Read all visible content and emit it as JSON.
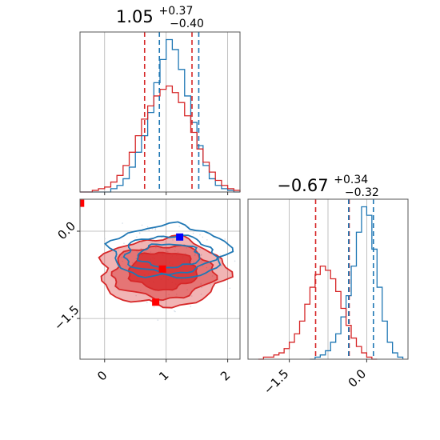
{
  "colors": {
    "blue": "#1f77b4",
    "red": "#d62728",
    "marker_blue": "#0000ff",
    "marker_red": "#ff0000"
  },
  "chart_data": {
    "type": "corner",
    "series": [
      {
        "name": "",
        "color": "#1f77b4"
      },
      {
        "name": "",
        "color": "#d62728"
      }
    ],
    "panels": [
      {
        "id": "hist-x",
        "type": "histogram",
        "variable": "x",
        "title": {
          "value": "1.05",
          "plus": "+0.37",
          "minus": "−0.40"
        },
        "xlim": [
          -0.4,
          2.2
        ],
        "grid": true,
        "blue": {
          "centers": [
            -0.35,
            -0.25,
            -0.15,
            -0.05,
            0.05,
            0.15,
            0.25,
            0.35,
            0.45,
            0.55,
            0.65,
            0.75,
            0.85,
            0.95,
            1.05,
            1.15,
            1.25,
            1.35,
            1.45,
            1.55,
            1.65,
            1.75,
            1.85,
            1.95,
            2.05,
            2.15
          ],
          "counts": [
            0,
            0,
            0,
            0,
            0,
            2,
            4,
            8,
            15,
            24,
            34,
            48,
            66,
            80,
            92,
            86,
            74,
            58,
            42,
            28,
            16,
            8,
            4,
            2,
            1,
            0
          ]
        },
        "red": {
          "centers": [
            -0.35,
            -0.25,
            -0.15,
            -0.05,
            0.05,
            0.15,
            0.25,
            0.35,
            0.45,
            0.55,
            0.65,
            0.75,
            0.85,
            0.95,
            1.05,
            1.15,
            1.25,
            1.35,
            1.45,
            1.55,
            1.65,
            1.75,
            1.85,
            1.95,
            2.05,
            2.15
          ],
          "counts": [
            0,
            0,
            1,
            2,
            3,
            6,
            10,
            16,
            24,
            34,
            44,
            52,
            58,
            62,
            64,
            60,
            54,
            46,
            36,
            26,
            18,
            12,
            7,
            4,
            2,
            1
          ]
        },
        "quantile_lines": {
          "blue": [
            0.89,
            1.53
          ],
          "red": [
            0.65,
            1.42
          ]
        }
      },
      {
        "id": "hist-y",
        "type": "histogram",
        "variable": "y",
        "title": {
          "value": "−0.67",
          "plus": "+0.34",
          "minus": "−0.32"
        },
        "xlim": [
          -2.3,
          0.8
        ],
        "grid": true,
        "x_ticks": [
          -1.5,
          0.0
        ],
        "x_tick_labels": [
          "−1.5",
          "0.0"
        ],
        "blue": {
          "centers": [
            -1.05,
            -0.95,
            -0.85,
            -0.75,
            -0.65,
            -0.55,
            -0.45,
            -0.35,
            -0.25,
            -0.15,
            -0.05,
            0.05,
            0.15,
            0.25,
            0.35,
            0.45,
            0.55,
            0.65
          ],
          "counts": [
            0,
            1,
            2,
            4,
            8,
            12,
            20,
            30,
            44,
            60,
            72,
            68,
            52,
            34,
            18,
            8,
            3,
            1
          ]
        },
        "red": {
          "centers": [
            -2.05,
            -1.95,
            -1.85,
            -1.75,
            -1.65,
            -1.55,
            -1.45,
            -1.35,
            -1.25,
            -1.15,
            -1.05,
            -0.95,
            -0.85,
            -0.75,
            -0.65,
            -0.55,
            -0.45,
            -0.35,
            -0.25,
            -0.15,
            -0.05,
            0.05,
            0.15
          ],
          "counts": [
            0,
            1,
            1,
            2,
            3,
            5,
            8,
            12,
            18,
            26,
            34,
            40,
            44,
            42,
            38,
            32,
            24,
            16,
            10,
            6,
            3,
            1,
            0
          ]
        },
        "quantile_lines": {
          "blue": [
            -0.35,
            0.13
          ],
          "red": [
            -0.99,
            -0.34
          ]
        }
      },
      {
        "id": "joint",
        "type": "contour",
        "variables": [
          "x",
          "y"
        ],
        "xlim": [
          -0.4,
          2.2
        ],
        "ylim": [
          -2.2,
          0.55
        ],
        "grid": true,
        "x_ticks": [
          0,
          1,
          2
        ],
        "x_tick_labels": [
          "0",
          "1",
          "2"
        ],
        "y_ticks": [
          0.0,
          -1.5
        ],
        "y_tick_labels": [
          "0.0",
          "−1.5"
        ],
        "blue_contours": [
          {
            "level": 1,
            "center": [
              1.05,
              -0.35
            ],
            "radii": [
              0.95,
              0.45
            ]
          },
          {
            "level": 2,
            "center": [
              1.05,
              -0.4
            ],
            "radii": [
              0.72,
              0.32
            ]
          },
          {
            "level": 3,
            "center": [
              1.05,
              -0.42
            ],
            "radii": [
              0.5,
              0.2
            ]
          }
        ],
        "red_contours": [
          {
            "level": 1,
            "center": [
              0.95,
              -0.7
            ],
            "radii": [
              1.02,
              0.58
            ],
            "fill_opacity": 0.35
          },
          {
            "level": 2,
            "center": [
              0.95,
              -0.7
            ],
            "radii": [
              0.82,
              0.45
            ],
            "fill_opacity": 0.45
          },
          {
            "level": 3,
            "center": [
              0.95,
              -0.68
            ],
            "radii": [
              0.55,
              0.32
            ],
            "fill_opacity": 0.75
          }
        ],
        "markers": [
          {
            "series": "blue",
            "x": 1.22,
            "y": -0.1
          },
          {
            "series": "red",
            "x": 0.83,
            "y": -1.22
          },
          {
            "series": "red",
            "x": 0.94,
            "y": -0.65
          },
          {
            "series": "red",
            "x": -0.39,
            "y": 0.48
          }
        ]
      }
    ]
  }
}
